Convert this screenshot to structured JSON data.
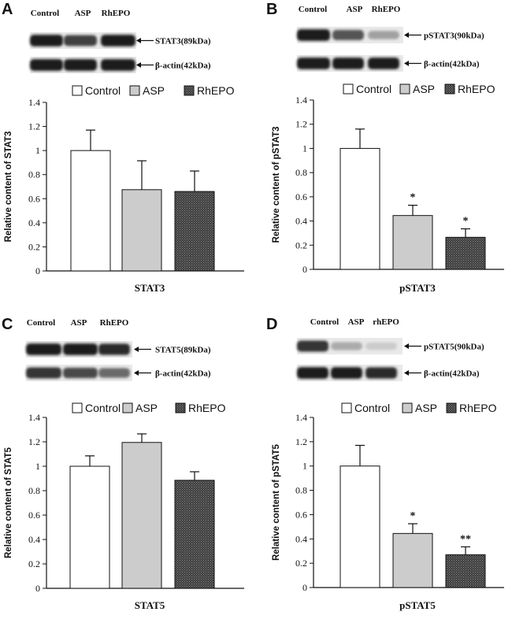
{
  "colors": {
    "control": "#ffffff",
    "asp": "#cccccc",
    "rhepo": "#4a4a4a",
    "band": "#161616",
    "blot_bg": "#e9e9e9"
  },
  "chart_data": [
    {
      "type": "bar",
      "panel": "A",
      "blot": {
        "lanes": [
          "Control",
          "ASP",
          "RhEPO"
        ],
        "rows": [
          {
            "label": "STAT3(89kDa)",
            "intensity": [
              0.95,
              0.8,
              0.95
            ]
          },
          {
            "label": "β-actin(42kDa)",
            "intensity": [
              0.95,
              0.95,
              0.95
            ]
          }
        ]
      },
      "legend": [
        "Control",
        "ASP",
        "RhEPO"
      ],
      "categories": [
        "Control",
        "ASP",
        "RhEPO"
      ],
      "values": [
        1.0,
        0.675,
        0.66
      ],
      "errors": [
        0.17,
        0.24,
        0.17
      ],
      "significance": [
        "",
        "",
        ""
      ],
      "ylabel": "Relative content of STAT3",
      "xlabel": "STAT3",
      "ylim": [
        0,
        1.4
      ],
      "yticks": [
        "0",
        "0.2",
        "0.4",
        "0.6",
        "0.8",
        "1",
        "1.2",
        "1.4"
      ]
    },
    {
      "type": "bar",
      "panel": "B",
      "blot": {
        "lanes": [
          "Control",
          "ASP",
          "RhEPO"
        ],
        "rows": [
          {
            "label": "pSTAT3(90kDa)",
            "intensity": [
              0.95,
              0.7,
              0.35
            ]
          },
          {
            "label": "β-actin(42kDa)",
            "intensity": [
              0.95,
              0.95,
              0.95
            ]
          }
        ]
      },
      "legend": [
        "Control",
        "ASP",
        "RhEPO"
      ],
      "categories": [
        "Control",
        "ASP",
        "RhEPO"
      ],
      "values": [
        1.0,
        0.445,
        0.265
      ],
      "errors": [
        0.16,
        0.085,
        0.07
      ],
      "significance": [
        "",
        "*",
        "*"
      ],
      "ylabel": "Relative content of pSTAT3",
      "xlabel": "pSTAT3",
      "ylim": [
        0,
        1.4
      ],
      "yticks": [
        "0",
        "0.2",
        "0.4",
        "0.6",
        "0.8",
        "1",
        "1.2",
        "1.4"
      ]
    },
    {
      "type": "bar",
      "panel": "C",
      "blot": {
        "lanes": [
          "Control",
          "ASP",
          "RhEPO"
        ],
        "rows": [
          {
            "label": "STAT5(89kDa)",
            "intensity": [
              0.95,
              0.95,
              0.9
            ]
          },
          {
            "label": "β-actin(42kDa)",
            "intensity": [
              0.85,
              0.75,
              0.6
            ]
          }
        ]
      },
      "legend": [
        "Control",
        "ASP",
        "RhEPO"
      ],
      "categories": [
        "Control",
        "ASP",
        "RhEPO"
      ],
      "values": [
        1.0,
        1.195,
        0.885
      ],
      "errors": [
        0.085,
        0.07,
        0.07
      ],
      "significance": [
        "",
        "",
        ""
      ],
      "ylabel": "Relative content of STAT5",
      "xlabel": "STAT5",
      "ylim": [
        0,
        1.4
      ],
      "yticks": [
        "0",
        "0.2",
        "0.4",
        "0.6",
        "0.8",
        "1",
        "1.2",
        "1.4"
      ]
    },
    {
      "type": "bar",
      "panel": "D",
      "blot": {
        "lanes": [
          "Control",
          "ASP",
          "rhEPO"
        ],
        "rows": [
          {
            "label": "pSTAT5(90kDa)",
            "intensity": [
              0.85,
              0.3,
              0.15
            ]
          },
          {
            "label": "β-actin(42kDa)",
            "intensity": [
              0.95,
              0.95,
              0.9
            ]
          }
        ]
      },
      "legend": [
        "Control",
        "ASP",
        "RhEPO"
      ],
      "categories": [
        "Control",
        "ASP",
        "RhEPO"
      ],
      "values": [
        1.0,
        0.445,
        0.27
      ],
      "errors": [
        0.17,
        0.08,
        0.065
      ],
      "significance": [
        "",
        "*",
        "**"
      ],
      "ylabel": "Relative content of pSTAT5",
      "xlabel": "pSTAT5",
      "ylim": [
        0,
        1.4
      ],
      "yticks": [
        "0",
        "0.2",
        "0.4",
        "0.6",
        "0.8",
        "1",
        "1.2",
        "1.4"
      ]
    }
  ]
}
